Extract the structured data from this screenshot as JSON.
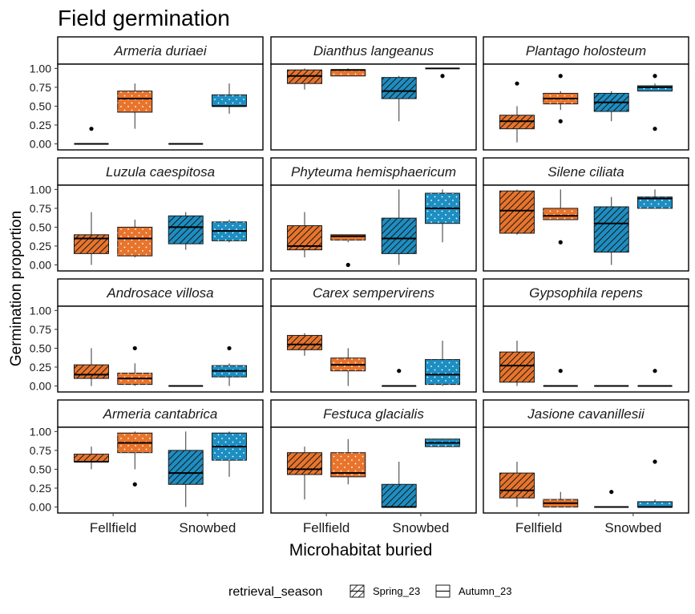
{
  "chart_data": {
    "type": "boxplot",
    "title": "Field germination",
    "xlabel": "Microhabitat buried",
    "ylabel": "Germination proportion",
    "ylim": [
      0,
      1
    ],
    "y_ticks": [
      "0.00",
      "0.25",
      "0.50",
      "0.75",
      "1.00"
    ],
    "categories": [
      "Fellfield",
      "Snowbed"
    ],
    "legend": {
      "title": "retrieval_season",
      "position": "bottom",
      "entries": [
        "Spring_23",
        "Autumn_23"
      ]
    },
    "colors": {
      "Fellfield": "#E8742C",
      "Snowbed": "#1D8EC2"
    },
    "patterns": {
      "Spring_23": "stripe",
      "Autumn_23": "dots"
    },
    "grid": false,
    "facets": [
      {
        "species": "Armeria duriaei",
        "groups": [
          {
            "habitat": "Fellfield",
            "season": "Spring_23",
            "min": 0.0,
            "q1": 0.0,
            "median": 0.0,
            "q3": 0.0,
            "max": 0.0,
            "outliers": [
              0.2
            ]
          },
          {
            "habitat": "Fellfield",
            "season": "Autumn_23",
            "min": 0.2,
            "q1": 0.42,
            "median": 0.6,
            "q3": 0.7,
            "max": 0.8,
            "outliers": []
          },
          {
            "habitat": "Snowbed",
            "season": "Spring_23",
            "min": 0.0,
            "q1": 0.0,
            "median": 0.0,
            "q3": 0.0,
            "max": 0.0,
            "outliers": []
          },
          {
            "habitat": "Snowbed",
            "season": "Autumn_23",
            "min": 0.4,
            "q1": 0.5,
            "median": 0.5,
            "q3": 0.65,
            "max": 0.8,
            "outliers": []
          }
        ]
      },
      {
        "species": "Dianthus langeanus",
        "groups": [
          {
            "habitat": "Fellfield",
            "season": "Spring_23",
            "min": 0.72,
            "q1": 0.8,
            "median": 0.9,
            "q3": 0.98,
            "max": 1.0,
            "outliers": []
          },
          {
            "habitat": "Fellfield",
            "season": "Autumn_23",
            "min": 0.9,
            "q1": 0.9,
            "median": 0.98,
            "q3": 0.98,
            "max": 1.0,
            "outliers": []
          },
          {
            "habitat": "Snowbed",
            "season": "Spring_23",
            "min": 0.3,
            "q1": 0.6,
            "median": 0.7,
            "q3": 0.88,
            "max": 0.9,
            "outliers": []
          },
          {
            "habitat": "Snowbed",
            "season": "Autumn_23",
            "min": 1.0,
            "q1": 1.0,
            "median": 1.0,
            "q3": 1.0,
            "max": 1.0,
            "outliers": [
              0.9
            ]
          }
        ]
      },
      {
        "species": "Plantago holosteum",
        "groups": [
          {
            "habitat": "Fellfield",
            "season": "Spring_23",
            "min": 0.02,
            "q1": 0.2,
            "median": 0.3,
            "q3": 0.38,
            "max": 0.5,
            "outliers": [
              0.8
            ]
          },
          {
            "habitat": "Fellfield",
            "season": "Autumn_23",
            "min": 0.45,
            "q1": 0.53,
            "median": 0.6,
            "q3": 0.67,
            "max": 0.7,
            "outliers": [
              0.9,
              0.3
            ]
          },
          {
            "habitat": "Snowbed",
            "season": "Spring_23",
            "min": 0.3,
            "q1": 0.43,
            "median": 0.55,
            "q3": 0.67,
            "max": 0.7,
            "outliers": []
          },
          {
            "habitat": "Snowbed",
            "season": "Autumn_23",
            "min": 0.7,
            "q1": 0.7,
            "median": 0.75,
            "q3": 0.77,
            "max": 0.8,
            "outliers": [
              0.9,
              0.2
            ]
          }
        ]
      },
      {
        "species": "Luzula caespitosa",
        "groups": [
          {
            "habitat": "Fellfield",
            "season": "Spring_23",
            "min": 0.0,
            "q1": 0.15,
            "median": 0.35,
            "q3": 0.4,
            "max": 0.7,
            "outliers": []
          },
          {
            "habitat": "Fellfield",
            "season": "Autumn_23",
            "min": 0.1,
            "q1": 0.12,
            "median": 0.35,
            "q3": 0.5,
            "max": 0.6,
            "outliers": []
          },
          {
            "habitat": "Snowbed",
            "season": "Spring_23",
            "min": 0.2,
            "q1": 0.28,
            "median": 0.5,
            "q3": 0.65,
            "max": 0.7,
            "outliers": []
          },
          {
            "habitat": "Snowbed",
            "season": "Autumn_23",
            "min": 0.3,
            "q1": 0.32,
            "median": 0.45,
            "q3": 0.57,
            "max": 0.6,
            "outliers": []
          }
        ]
      },
      {
        "species": "Phyteuma hemisphaericum",
        "groups": [
          {
            "habitat": "Fellfield",
            "season": "Spring_23",
            "min": 0.1,
            "q1": 0.2,
            "median": 0.25,
            "q3": 0.52,
            "max": 0.7,
            "outliers": []
          },
          {
            "habitat": "Fellfield",
            "season": "Autumn_23",
            "min": 0.3,
            "q1": 0.33,
            "median": 0.38,
            "q3": 0.4,
            "max": 0.4,
            "outliers": [
              0.0
            ]
          },
          {
            "habitat": "Snowbed",
            "season": "Spring_23",
            "min": 0.0,
            "q1": 0.15,
            "median": 0.35,
            "q3": 0.62,
            "max": 1.0,
            "outliers": []
          },
          {
            "habitat": "Snowbed",
            "season": "Autumn_23",
            "min": 0.3,
            "q1": 0.55,
            "median": 0.75,
            "q3": 0.95,
            "max": 1.0,
            "outliers": []
          }
        ]
      },
      {
        "species": "Silene ciliata",
        "groups": [
          {
            "habitat": "Fellfield",
            "season": "Spring_23",
            "min": 0.4,
            "q1": 0.42,
            "median": 0.72,
            "q3": 0.98,
            "max": 1.0,
            "outliers": []
          },
          {
            "habitat": "Fellfield",
            "season": "Autumn_23",
            "min": 0.6,
            "q1": 0.6,
            "median": 0.65,
            "q3": 0.75,
            "max": 1.0,
            "outliers": [
              0.3
            ]
          },
          {
            "habitat": "Snowbed",
            "season": "Spring_23",
            "min": 0.0,
            "q1": 0.17,
            "median": 0.55,
            "q3": 0.77,
            "max": 0.9,
            "outliers": []
          },
          {
            "habitat": "Snowbed",
            "season": "Autumn_23",
            "min": 0.75,
            "q1": 0.75,
            "median": 0.88,
            "q3": 0.9,
            "max": 1.0,
            "outliers": []
          }
        ]
      },
      {
        "species": "Androsace villosa",
        "groups": [
          {
            "habitat": "Fellfield",
            "season": "Spring_23",
            "min": 0.0,
            "q1": 0.1,
            "median": 0.15,
            "q3": 0.28,
            "max": 0.5,
            "outliers": []
          },
          {
            "habitat": "Fellfield",
            "season": "Autumn_23",
            "min": 0.0,
            "q1": 0.02,
            "median": 0.1,
            "q3": 0.17,
            "max": 0.3,
            "outliers": [
              0.5
            ]
          },
          {
            "habitat": "Snowbed",
            "season": "Spring_23",
            "min": 0.0,
            "q1": 0.0,
            "median": 0.0,
            "q3": 0.0,
            "max": 0.0,
            "outliers": []
          },
          {
            "habitat": "Snowbed",
            "season": "Autumn_23",
            "min": 0.0,
            "q1": 0.12,
            "median": 0.2,
            "q3": 0.27,
            "max": 0.3,
            "outliers": [
              0.5
            ]
          }
        ]
      },
      {
        "species": "Carex sempervirens",
        "groups": [
          {
            "habitat": "Fellfield",
            "season": "Spring_23",
            "min": 0.4,
            "q1": 0.48,
            "median": 0.55,
            "q3": 0.67,
            "max": 0.7,
            "outliers": []
          },
          {
            "habitat": "Fellfield",
            "season": "Autumn_23",
            "min": 0.0,
            "q1": 0.2,
            "median": 0.28,
            "q3": 0.37,
            "max": 0.5,
            "outliers": []
          },
          {
            "habitat": "Snowbed",
            "season": "Spring_23",
            "min": 0.0,
            "q1": 0.0,
            "median": 0.0,
            "q3": 0.0,
            "max": 0.0,
            "outliers": [
              0.2
            ]
          },
          {
            "habitat": "Snowbed",
            "season": "Autumn_23",
            "min": 0.0,
            "q1": 0.02,
            "median": 0.15,
            "q3": 0.35,
            "max": 0.6,
            "outliers": []
          }
        ]
      },
      {
        "species": "Gypsophila repens",
        "groups": [
          {
            "habitat": "Fellfield",
            "season": "Spring_23",
            "min": 0.0,
            "q1": 0.05,
            "median": 0.27,
            "q3": 0.45,
            "max": 0.6,
            "outliers": []
          },
          {
            "habitat": "Fellfield",
            "season": "Autumn_23",
            "min": 0.0,
            "q1": 0.0,
            "median": 0.0,
            "q3": 0.0,
            "max": 0.0,
            "outliers": [
              0.2
            ]
          },
          {
            "habitat": "Snowbed",
            "season": "Spring_23",
            "min": 0.0,
            "q1": 0.0,
            "median": 0.0,
            "q3": 0.0,
            "max": 0.0,
            "outliers": []
          },
          {
            "habitat": "Snowbed",
            "season": "Autumn_23",
            "min": 0.0,
            "q1": 0.0,
            "median": 0.0,
            "q3": 0.0,
            "max": 0.0,
            "outliers": [
              0.2
            ]
          }
        ]
      },
      {
        "species": "Armeria cantabrica",
        "groups": [
          {
            "habitat": "Fellfield",
            "season": "Spring_23",
            "min": 0.5,
            "q1": 0.6,
            "median": 0.6,
            "q3": 0.7,
            "max": 0.8,
            "outliers": []
          },
          {
            "habitat": "Fellfield",
            "season": "Autumn_23",
            "min": 0.5,
            "q1": 0.72,
            "median": 0.85,
            "q3": 0.98,
            "max": 1.0,
            "outliers": [
              0.3
            ]
          },
          {
            "habitat": "Snowbed",
            "season": "Spring_23",
            "min": 0.0,
            "q1": 0.3,
            "median": 0.45,
            "q3": 0.75,
            "max": 1.0,
            "outliers": []
          },
          {
            "habitat": "Snowbed",
            "season": "Autumn_23",
            "min": 0.4,
            "q1": 0.62,
            "median": 0.8,
            "q3": 0.98,
            "max": 1.0,
            "outliers": []
          }
        ]
      },
      {
        "species": "Festuca glacialis",
        "groups": [
          {
            "habitat": "Fellfield",
            "season": "Spring_23",
            "min": 0.1,
            "q1": 0.43,
            "median": 0.5,
            "q3": 0.72,
            "max": 0.8,
            "outliers": []
          },
          {
            "habitat": "Fellfield",
            "season": "Autumn_23",
            "min": 0.3,
            "q1": 0.4,
            "median": 0.45,
            "q3": 0.72,
            "max": 0.9,
            "outliers": []
          },
          {
            "habitat": "Snowbed",
            "season": "Spring_23",
            "min": 0.0,
            "q1": 0.0,
            "median": 0.0,
            "q3": 0.3,
            "max": 0.6,
            "outliers": []
          },
          {
            "habitat": "Snowbed",
            "season": "Autumn_23",
            "min": 0.8,
            "q1": 0.8,
            "median": 0.85,
            "q3": 0.9,
            "max": 0.9,
            "outliers": []
          }
        ]
      },
      {
        "species": "Jasione cavanillesii",
        "groups": [
          {
            "habitat": "Fellfield",
            "season": "Spring_23",
            "min": 0.0,
            "q1": 0.12,
            "median": 0.22,
            "q3": 0.45,
            "max": 0.6,
            "outliers": []
          },
          {
            "habitat": "Fellfield",
            "season": "Autumn_23",
            "min": 0.0,
            "q1": 0.0,
            "median": 0.05,
            "q3": 0.1,
            "max": 0.2,
            "outliers": []
          },
          {
            "habitat": "Snowbed",
            "season": "Spring_23",
            "min": 0.0,
            "q1": 0.0,
            "median": 0.0,
            "q3": 0.0,
            "max": 0.0,
            "outliers": [
              0.2
            ]
          },
          {
            "habitat": "Snowbed",
            "season": "Autumn_23",
            "min": 0.0,
            "q1": 0.0,
            "median": 0.0,
            "q3": 0.07,
            "max": 0.1,
            "outliers": [
              0.6
            ]
          }
        ]
      }
    ]
  }
}
